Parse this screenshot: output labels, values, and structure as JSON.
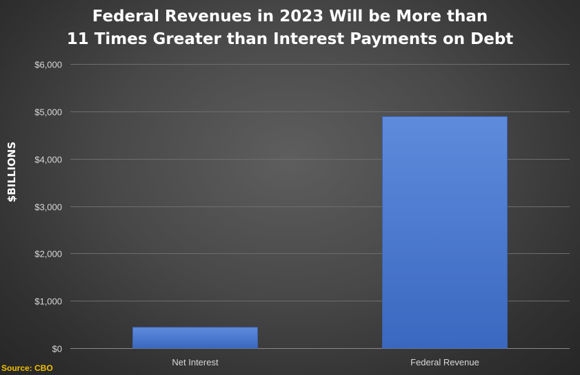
{
  "chart_data": {
    "type": "bar",
    "title_lines": [
      "Federal Revenues in 2023 Will be More than",
      "11 Times Greater than Interest Payments on Debt"
    ],
    "ylabel": "$BILLIONS",
    "xlabel": "",
    "categories": [
      "Net Interest",
      "Federal Revenue"
    ],
    "values": [
      440,
      4890
    ],
    "ylim": [
      0,
      6000
    ],
    "yticks": [
      0,
      1000,
      2000,
      3000,
      4000,
      5000,
      6000
    ],
    "ytick_labels": [
      "$0",
      "$1,000",
      "$2,000",
      "$3,000",
      "$4,000",
      "$5,000",
      "$6,000"
    ],
    "grid": true,
    "legend": "none",
    "bar_color": "#4472c4"
  },
  "source_note": "Source: CBO"
}
